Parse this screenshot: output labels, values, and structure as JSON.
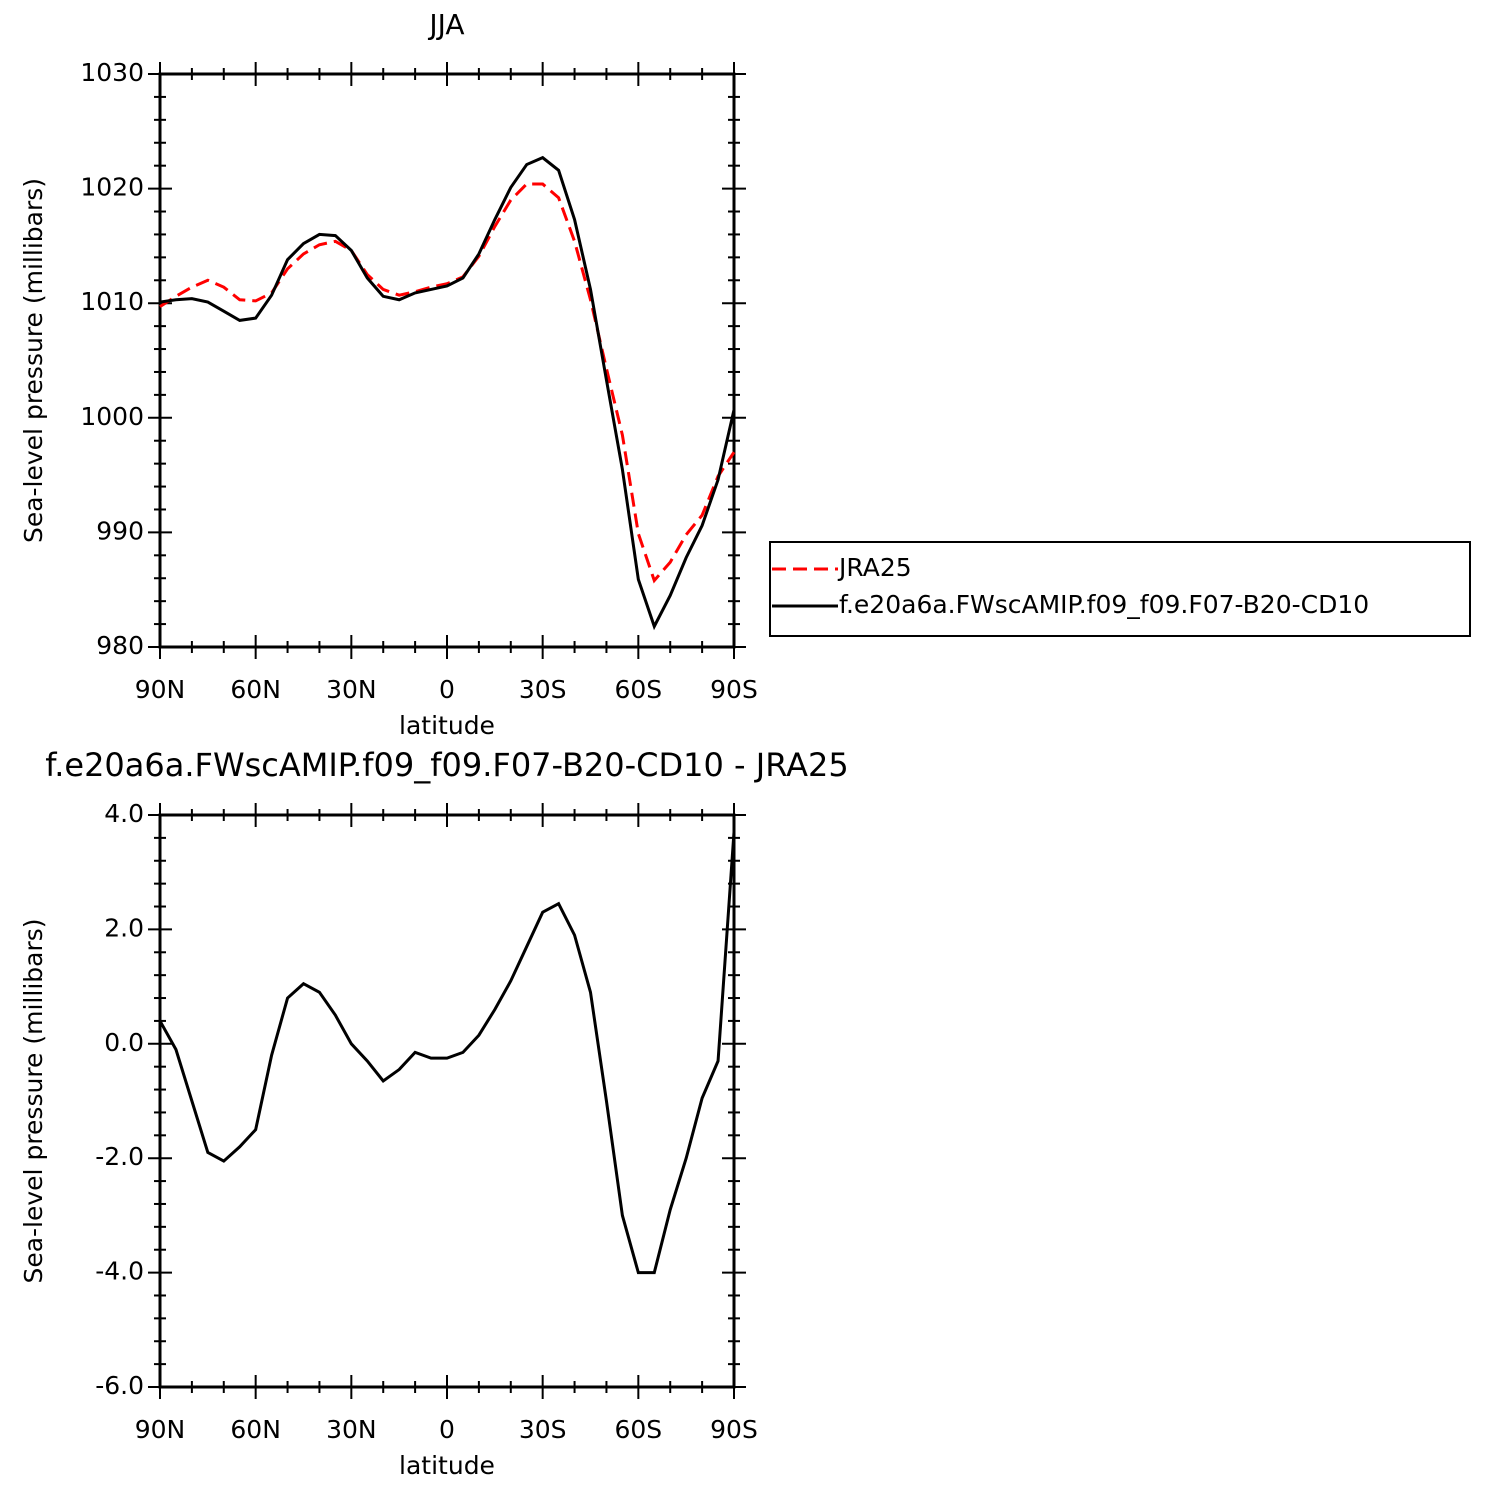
{
  "chart_data": [
    {
      "type": "line",
      "title": "JJA",
      "xlabel": "latitude",
      "ylabel": "Sea-level pressure (millibars)",
      "x": [
        90,
        85,
        80,
        75,
        70,
        65,
        60,
        55,
        50,
        45,
        40,
        35,
        30,
        25,
        20,
        15,
        10,
        5,
        0,
        -5,
        -10,
        -15,
        -20,
        -25,
        -30,
        -35,
        -40,
        -45,
        -50,
        -55,
        -60,
        -65,
        -70,
        -75,
        -80,
        -85,
        -90
      ],
      "series": [
        {
          "name": "JRA25",
          "color": "#ff0000",
          "style": "dashed",
          "values": [
            1009.7,
            1010.6,
            1011.4,
            1012.0,
            1011.4,
            1010.3,
            1010.2,
            1010.9,
            1013.0,
            1014.3,
            1015.1,
            1015.4,
            1014.6,
            1012.5,
            1011.2,
            1010.7,
            1011.0,
            1011.4,
            1011.7,
            1012.3,
            1014.1,
            1016.7,
            1019.0,
            1020.4,
            1020.4,
            1019.2,
            1015.4,
            1010.3,
            1004.3,
            998.5,
            989.9,
            985.8,
            987.4,
            989.8,
            991.5,
            994.9,
            997.0
          ]
        },
        {
          "name": "f.e20a6a.FWscAMIP.f09_f09.F07-B20-CD10",
          "color": "#000000",
          "style": "solid",
          "values": [
            1010.1,
            1010.3,
            1010.4,
            1010.1,
            1009.3,
            1008.5,
            1008.7,
            1010.7,
            1013.8,
            1015.2,
            1016.0,
            1015.9,
            1014.6,
            1012.2,
            1010.6,
            1010.3,
            1010.9,
            1011.2,
            1011.5,
            1012.2,
            1014.3,
            1017.3,
            1020.1,
            1022.1,
            1022.7,
            1021.6,
            1017.3,
            1011.2,
            1003.3,
            995.5,
            985.9,
            981.8,
            984.5,
            987.8,
            990.6,
            994.6,
            1000.7
          ]
        }
      ],
      "xlim": [
        90,
        -90
      ],
      "xticks": [
        {
          "value": 90,
          "label": "90N"
        },
        {
          "value": 60,
          "label": "60N"
        },
        {
          "value": 30,
          "label": "30N"
        },
        0,
        {
          "value": -30,
          "label": "30S"
        },
        {
          "value": -60,
          "label": "60S"
        },
        {
          "value": -90,
          "label": "90S"
        }
      ],
      "xminor_ticks": [
        80,
        70,
        50,
        40,
        20,
        10,
        -10,
        -20,
        -40,
        -50,
        -70,
        -80
      ],
      "ylim": [
        980,
        1030
      ],
      "yticks": [
        980,
        990,
        1000,
        1010,
        1020,
        1030
      ],
      "yminor_ticks": [
        982,
        984,
        986,
        988,
        992,
        994,
        996,
        998,
        1002,
        1004,
        1006,
        1008,
        1012,
        1014,
        1016,
        1018,
        1022,
        1024,
        1026,
        1028
      ],
      "legend": "right"
    },
    {
      "type": "line",
      "title": "f.e20a6a.FWscAMIP.f09_f09.F07-B20-CD10 - JRA25",
      "xlabel": "latitude",
      "ylabel": "Sea-level pressure (millibars)",
      "x": [
        90,
        85,
        80,
        75,
        70,
        65,
        60,
        55,
        50,
        45,
        40,
        35,
        30,
        25,
        20,
        15,
        10,
        5,
        0,
        -5,
        -10,
        -15,
        -20,
        -25,
        -30,
        -35,
        -40,
        -45,
        -50,
        -55,
        -60,
        -65,
        -70,
        -75,
        -80,
        -85,
        -90
      ],
      "values": [
        0.4,
        -0.1,
        -1.0,
        -1.9,
        -2.05,
        -1.8,
        -1.5,
        -0.2,
        0.8,
        1.05,
        0.9,
        0.5,
        0.0,
        -0.3,
        -0.65,
        -0.45,
        -0.15,
        -0.25,
        -0.25,
        -0.15,
        0.15,
        0.6,
        1.1,
        1.7,
        2.3,
        2.45,
        1.9,
        0.9,
        -1.0,
        -3.0,
        -4.0,
        -4.0,
        -2.9,
        -2.0,
        -0.95,
        -0.3,
        3.7
      ],
      "color": "#000000",
      "style": "solid",
      "xlim": [
        90,
        -90
      ],
      "xticks": [
        {
          "value": 90,
          "label": "90N"
        },
        {
          "value": 60,
          "label": "60N"
        },
        {
          "value": 30,
          "label": "30N"
        },
        0,
        {
          "value": -30,
          "label": "30S"
        },
        {
          "value": -60,
          "label": "60S"
        },
        {
          "value": -90,
          "label": "90S"
        }
      ],
      "xminor_ticks": [
        80,
        70,
        50,
        40,
        20,
        10,
        -10,
        -20,
        -40,
        -50,
        -70,
        -80
      ],
      "ylim": [
        -6,
        4
      ],
      "yticks": [
        {
          "value": -6,
          "label": "-6.0"
        },
        {
          "value": -4,
          "label": "-4.0"
        },
        {
          "value": -2,
          "label": "-2.0"
        },
        {
          "value": 0,
          "label": "0.0"
        },
        {
          "value": 2,
          "label": "2.0"
        },
        {
          "value": 4,
          "label": "4.0"
        }
      ],
      "yminor_ticks": [
        -5.6,
        -5.2,
        -4.8,
        -4.4,
        -3.6,
        -3.2,
        -2.8,
        -2.4,
        -1.6,
        -1.2,
        -0.8,
        -0.4,
        0.4,
        0.8,
        1.2,
        1.6,
        2.4,
        2.8,
        3.2,
        3.6
      ]
    }
  ]
}
